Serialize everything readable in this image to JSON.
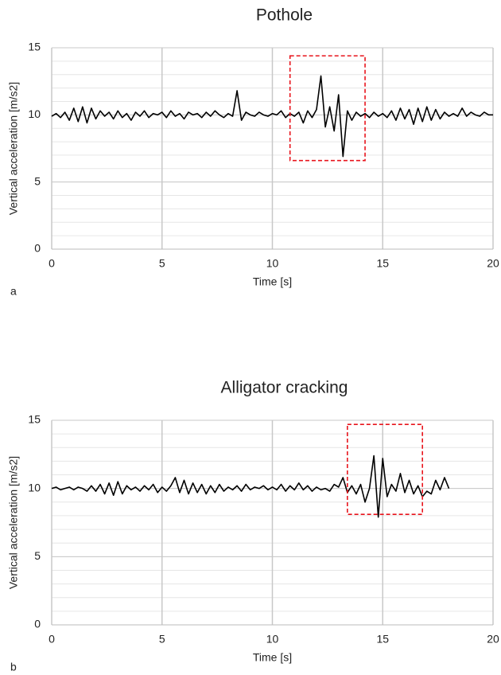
{
  "chart_data": [
    {
      "type": "line",
      "title": "Pothole",
      "panel_label": "a",
      "xlabel": "Time [s]",
      "ylabel": "Vertical acceleration [m/s2]",
      "xlim": [
        0,
        20
      ],
      "xticks": [
        0,
        5,
        10,
        15,
        20
      ],
      "ylim": [
        0,
        15
      ],
      "yticks": [
        0,
        5,
        10,
        15
      ],
      "minor_grid_step": 1,
      "grid": true,
      "highlight_box": {
        "x": [
          10.8,
          14.2
        ],
        "y": [
          6.6,
          14.4
        ],
        "color": "#e8141c"
      },
      "series": [
        {
          "color": "#000000",
          "x": [
            0,
            0.2,
            0.4,
            0.6,
            0.8,
            1,
            1.2,
            1.4,
            1.6,
            1.8,
            2,
            2.2,
            2.4,
            2.6,
            2.8,
            3,
            3.2,
            3.4,
            3.6,
            3.8,
            4,
            4.2,
            4.4,
            4.6,
            4.8,
            5,
            5.2,
            5.4,
            5.6,
            5.8,
            6,
            6.2,
            6.4,
            6.6,
            6.8,
            7,
            7.2,
            7.4,
            7.6,
            7.8,
            8,
            8.2,
            8.4,
            8.6,
            8.8,
            9,
            9.2,
            9.4,
            9.6,
            9.8,
            10,
            10.2,
            10.4,
            10.6,
            10.8,
            11,
            11.2,
            11.4,
            11.6,
            11.8,
            12,
            12.2,
            12.4,
            12.6,
            12.8,
            13,
            13.2,
            13.4,
            13.6,
            13.8,
            14,
            14.2,
            14.4,
            14.6,
            14.8,
            15,
            15.2,
            15.4,
            15.6,
            15.8,
            16,
            16.2,
            16.4,
            16.6,
            16.8,
            17,
            17.2,
            17.4,
            17.6,
            17.8,
            18,
            18.2,
            18.4,
            18.6,
            18.8,
            19,
            19.2,
            19.4,
            19.6,
            19.8,
            20
          ],
          "values": [
            9.9,
            10.1,
            9.8,
            10.2,
            9.6,
            10.5,
            9.5,
            10.6,
            9.4,
            10.5,
            9.7,
            10.3,
            9.9,
            10.2,
            9.7,
            10.3,
            9.8,
            10.1,
            9.6,
            10.2,
            9.9,
            10.3,
            9.8,
            10.1,
            10.0,
            10.2,
            9.8,
            10.3,
            9.9,
            10.1,
            9.7,
            10.2,
            10.0,
            10.1,
            9.8,
            10.2,
            9.9,
            10.3,
            10.0,
            9.8,
            10.1,
            9.9,
            11.8,
            9.6,
            10.2,
            10.0,
            9.9,
            10.2,
            10.0,
            9.9,
            10.1,
            10.0,
            10.3,
            9.8,
            10.1,
            9.9,
            10.2,
            9.4,
            10.3,
            9.8,
            10.4,
            12.9,
            9.1,
            10.6,
            8.8,
            11.5,
            6.9,
            10.3,
            9.6,
            10.2,
            9.9,
            10.1,
            9.8,
            10.2,
            9.9,
            10.1,
            9.8,
            10.3,
            9.6,
            10.5,
            9.7,
            10.4,
            9.3,
            10.5,
            9.5,
            10.6,
            9.6,
            10.4,
            9.7,
            10.2,
            9.9,
            10.1,
            9.9,
            10.5,
            9.9,
            10.2,
            10.0,
            9.9,
            10.2,
            10.0,
            10.0
          ]
        }
      ]
    },
    {
      "type": "line",
      "title": "Alligator cracking",
      "panel_label": "b",
      "xlabel": "Time [s]",
      "ylabel": "Vertical acceleration [m/s2]",
      "xlim": [
        0,
        20
      ],
      "xticks": [
        0,
        5,
        10,
        15,
        20
      ],
      "ylim": [
        0,
        15
      ],
      "yticks": [
        0,
        5,
        10,
        15
      ],
      "minor_grid_step": 1,
      "grid": true,
      "highlight_box": {
        "x": [
          13.4,
          16.8
        ],
        "y": [
          8.1,
          14.7
        ],
        "color": "#e8141c"
      },
      "series": [
        {
          "color": "#000000",
          "x": [
            0,
            0.2,
            0.4,
            0.6,
            0.8,
            1,
            1.2,
            1.4,
            1.6,
            1.8,
            2,
            2.2,
            2.4,
            2.6,
            2.8,
            3,
            3.2,
            3.4,
            3.6,
            3.8,
            4,
            4.2,
            4.4,
            4.6,
            4.8,
            5,
            5.2,
            5.4,
            5.6,
            5.8,
            6,
            6.2,
            6.4,
            6.6,
            6.8,
            7,
            7.2,
            7.4,
            7.6,
            7.8,
            8,
            8.2,
            8.4,
            8.6,
            8.8,
            9,
            9.2,
            9.4,
            9.6,
            9.8,
            10,
            10.2,
            10.4,
            10.6,
            10.8,
            11,
            11.2,
            11.4,
            11.6,
            11.8,
            12,
            12.2,
            12.4,
            12.6,
            12.8,
            13,
            13.2,
            13.4,
            13.6,
            13.8,
            14,
            14.2,
            14.4,
            14.6,
            14.8,
            15,
            15.2,
            15.4,
            15.6,
            15.8,
            16,
            16.2,
            16.4,
            16.6,
            16.8,
            17,
            17.2,
            17.4,
            17.6,
            17.8,
            18
          ],
          "values": [
            10.0,
            10.1,
            9.9,
            10.0,
            10.1,
            9.9,
            10.1,
            10.0,
            9.8,
            10.2,
            9.8,
            10.3,
            9.6,
            10.4,
            9.5,
            10.5,
            9.6,
            10.2,
            9.9,
            10.1,
            9.8,
            10.2,
            9.9,
            10.3,
            9.7,
            10.1,
            9.8,
            10.2,
            10.8,
            9.7,
            10.6,
            9.6,
            10.4,
            9.7,
            10.3,
            9.6,
            10.2,
            9.7,
            10.3,
            9.8,
            10.1,
            9.9,
            10.2,
            9.8,
            10.3,
            9.9,
            10.1,
            10.0,
            10.2,
            9.9,
            10.1,
            9.9,
            10.3,
            9.8,
            10.2,
            9.9,
            10.4,
            9.9,
            10.2,
            9.8,
            10.1,
            9.9,
            10.0,
            9.8,
            10.3,
            10.1,
            10.8,
            9.7,
            10.2,
            9.6,
            10.3,
            9.0,
            10.0,
            12.4,
            7.9,
            12.2,
            9.4,
            10.3,
            9.8,
            11.1,
            9.7,
            10.6,
            9.6,
            10.2,
            9.4,
            9.8,
            9.6,
            10.6,
            9.9,
            10.8,
            10.0
          ]
        }
      ]
    }
  ]
}
